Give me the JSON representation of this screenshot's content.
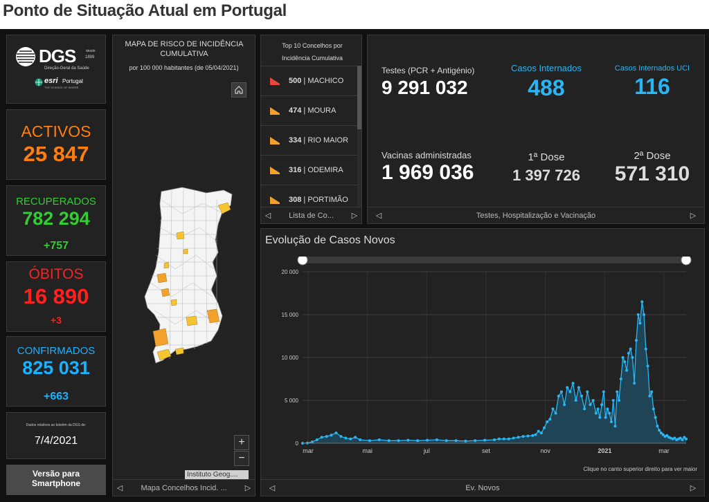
{
  "page_title": "Ponto de Situação Atual em Portugal",
  "logo": {
    "dgs": "DGS",
    "desde": "desde",
    "year": "1899",
    "subtitle": "Direção-Geral da Saúde",
    "esri": "esri",
    "esri_country": "Portugal",
    "esri_tagline": "THE SCIENCE OF WHERE"
  },
  "activos": {
    "label": "ACTIVOS",
    "value": "25 847",
    "color": "#ff7f0e"
  },
  "recuperados": {
    "label": "RECUPERADOS",
    "value": "782 294",
    "delta": "+757",
    "color": "#33cc33"
  },
  "obitos": {
    "label": "ÓBITOS",
    "value": "16 890",
    "delta": "+3",
    "color": "#ff2020"
  },
  "confirmados": {
    "label": "CONFIRMADOS",
    "value": "825 031",
    "delta": "+663",
    "color": "#1ab2ff"
  },
  "boletim": {
    "note": "Dados relativos ao boletim da DGS de:",
    "date": "7/4/2021"
  },
  "smartphone_button": {
    "line1": "Versão para",
    "line2": "Smartphone"
  },
  "map": {
    "title": "MAPA DE RISCO DE INCIDÊNCIA CUMULATIVA",
    "subtitle": "por 100 000 habitantes (de 05/04/2021)",
    "attribution": "Instituto Geog....",
    "footer": "Mapa Concelhos Incid. ...",
    "zoom_in": "+",
    "zoom_out": "−"
  },
  "top10": {
    "title": "Top 10 Concelhos por Incidência Cumulativa",
    "items": [
      {
        "value": "500",
        "name": "MACHICO",
        "color": "#e8483a"
      },
      {
        "value": "474",
        "name": "MOURA",
        "color": "#f2a12c"
      },
      {
        "value": "334",
        "name": "RIO MAIOR",
        "color": "#f2a12c"
      },
      {
        "value": "316",
        "name": "ODEMIRA",
        "color": "#f2a12c"
      },
      {
        "value": "308",
        "name": "PORTIMÃO",
        "color": "#f2a12c"
      }
    ],
    "footer": "Lista de Co..."
  },
  "stats": {
    "testes_label": "Testes (PCR + Antigénio)",
    "testes_value": "9 291 032",
    "internados_label": "Casos Internados",
    "internados_value": "488",
    "uci_label": "Casos Internados UCI",
    "uci_value": "116",
    "vacinas_label": "Vacinas administradas",
    "vacinas_value": "1 969 036",
    "dose1_label": "1ª Dose",
    "dose1_value": "1 397 726",
    "dose2_label": "2ª Dose",
    "dose2_value": "571 310",
    "footer": "Testes, Hospitalização e Vacinação"
  },
  "chart_panel": {
    "title": "Evolução de Casos Novos",
    "note": "Clique no canto superior direito para ver maior",
    "footer": "Ev. Novos"
  },
  "chart_data": {
    "type": "area",
    "title": "Evolução de Casos Novos",
    "x_tick_labels": [
      "mar",
      "mai",
      "jul",
      "set",
      "nov",
      "2021",
      "mar"
    ],
    "y_tick_labels": [
      "0",
      "5 000",
      "10 000",
      "15 000",
      "20 000"
    ],
    "ylim": [
      0,
      20000
    ],
    "grid": true,
    "line_color": "#29b6f6",
    "x_days": [
      0,
      5,
      10,
      15,
      20,
      25,
      30,
      35,
      40,
      45,
      50,
      55,
      60,
      70,
      80,
      90,
      100,
      110,
      120,
      130,
      140,
      150,
      160,
      170,
      180,
      190,
      200,
      205,
      210,
      215,
      220,
      225,
      230,
      235,
      240,
      243,
      246,
      249,
      252,
      255,
      258,
      261,
      264,
      267,
      270,
      273,
      276,
      279,
      282,
      285,
      288,
      291,
      294,
      297,
      300,
      303,
      306,
      308,
      310,
      312,
      314,
      316,
      318,
      320,
      322,
      324,
      326,
      328,
      330,
      332,
      334,
      336,
      338,
      340,
      342,
      344,
      346,
      348,
      350,
      352,
      354,
      356,
      358,
      360,
      362,
      364,
      366,
      368,
      370,
      372,
      374,
      376,
      378,
      380,
      382,
      384,
      386,
      388,
      390,
      392,
      394,
      396,
      398,
      400
    ],
    "values": [
      0,
      20,
      150,
      400,
      700,
      800,
      950,
      1200,
      800,
      600,
      500,
      700,
      400,
      300,
      400,
      300,
      300,
      350,
      300,
      350,
      400,
      300,
      300,
      250,
      300,
      350,
      400,
      500,
      500,
      500,
      600,
      700,
      800,
      850,
      900,
      1000,
      1400,
      1200,
      1800,
      2500,
      2800,
      4000,
      3500,
      5500,
      6000,
      4500,
      6500,
      6000,
      7000,
      5000,
      6500,
      5500,
      4000,
      6000,
      4500,
      5000,
      3500,
      4000,
      3000,
      4500,
      6000,
      3000,
      4000,
      3500,
      2500,
      5000,
      2000,
      6000,
      5000,
      7500,
      10000,
      9500,
      8500,
      10500,
      11000,
      10000,
      7000,
      12000,
      15000,
      14000,
      16500,
      15000,
      11000,
      9000,
      5500,
      6000,
      4000,
      3000,
      2000,
      1500,
      1200,
      1000,
      800,
      900,
      700,
      600,
      500,
      600,
      400,
      500,
      600,
      400,
      700,
      500
    ]
  }
}
